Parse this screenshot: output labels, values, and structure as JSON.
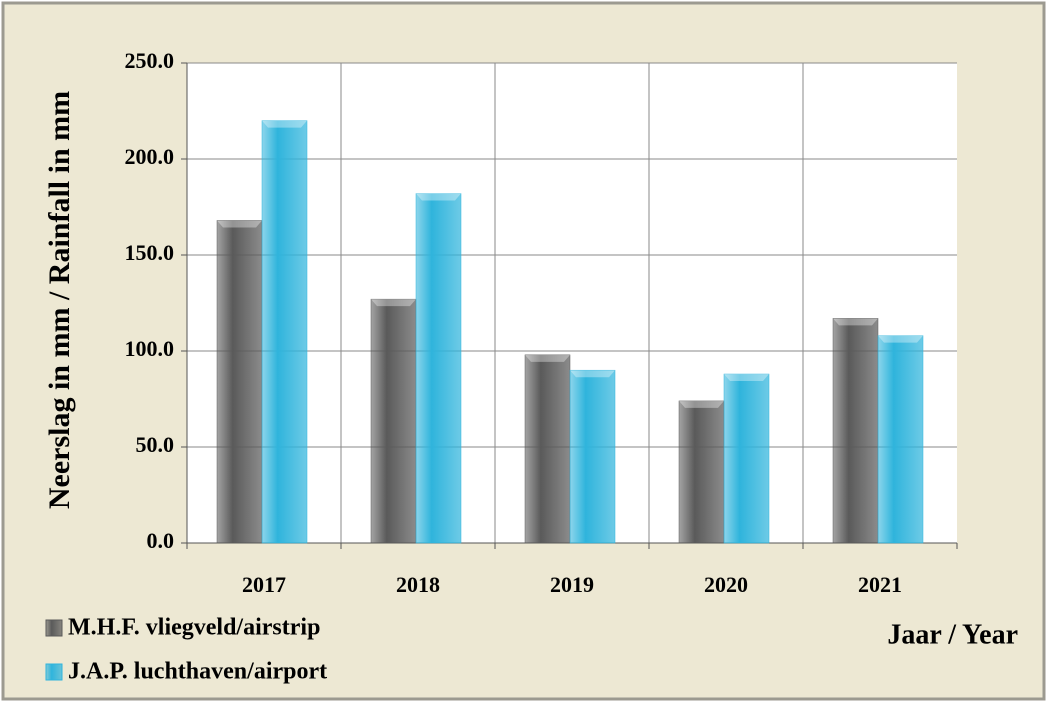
{
  "chart_data": {
    "type": "bar",
    "y_label": "Neerslag in mm / Rainfall in mm",
    "x_label": "Jaar / Year",
    "categories": [
      "2017",
      "2018",
      "2019",
      "2020",
      "2021"
    ],
    "series": [
      {
        "name": "M.H.F. vliegveld/airstrip",
        "color": "#5a5a5a",
        "values": [
          168,
          127,
          98,
          74,
          117
        ]
      },
      {
        "name": "J.A.P. luchthaven/airport",
        "color": "#2fb4dc",
        "values": [
          220,
          182,
          90,
          88,
          108
        ]
      }
    ],
    "ylim": [
      0,
      250
    ],
    "yticks": [
      {
        "value": 0,
        "label": "0.0"
      },
      {
        "value": 50,
        "label": "50.0"
      },
      {
        "value": 100,
        "label": "100.0"
      },
      {
        "value": 150,
        "label": "150.0"
      },
      {
        "value": 200,
        "label": "200.0"
      },
      {
        "value": 250,
        "label": "250.0"
      }
    ],
    "grid": true,
    "legend": "bottom-left"
  }
}
